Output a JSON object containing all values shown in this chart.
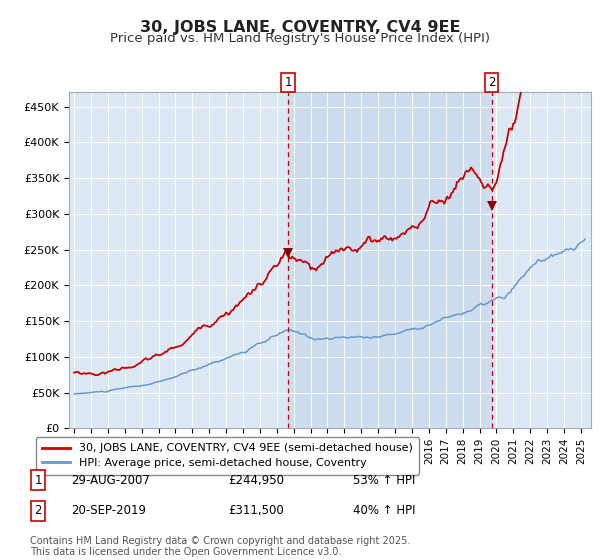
{
  "title": "30, JOBS LANE, COVENTRY, CV4 9EE",
  "subtitle": "Price paid vs. HM Land Registry's House Price Index (HPI)",
  "title_fontsize": 11.5,
  "subtitle_fontsize": 9.5,
  "background_color": "#ffffff",
  "plot_bg_color": "#dce9f5",
  "ylim": [
    0,
    470000
  ],
  "yticks": [
    0,
    50000,
    100000,
    150000,
    200000,
    250000,
    300000,
    350000,
    400000,
    450000
  ],
  "ytick_labels": [
    "£0",
    "£50K",
    "£100K",
    "£150K",
    "£200K",
    "£250K",
    "£300K",
    "£350K",
    "£400K",
    "£450K"
  ],
  "sale1_date": "29-AUG-2007",
  "sale1_price": 244950,
  "sale1_pct": "53%",
  "sale1_x": 2007.66,
  "sale2_date": "20-SEP-2019",
  "sale2_price": 311500,
  "sale2_pct": "40%",
  "sale2_x": 2019.72,
  "red_line_color": "#cc0000",
  "blue_line_color": "#6699cc",
  "dashed_line_color": "#cc0000",
  "legend_label1": "30, JOBS LANE, COVENTRY, CV4 9EE (semi-detached house)",
  "legend_label2": "HPI: Average price, semi-detached house, Coventry",
  "footnote": "Contains HM Land Registry data © Crown copyright and database right 2025.\nThis data is licensed under the Open Government Licence v3.0.",
  "footnote_fontsize": 7.0,
  "shaded_region_start": 2007.66,
  "shaded_region_end": 2019.72,
  "xlim_left": 1994.7,
  "xlim_right": 2025.6
}
